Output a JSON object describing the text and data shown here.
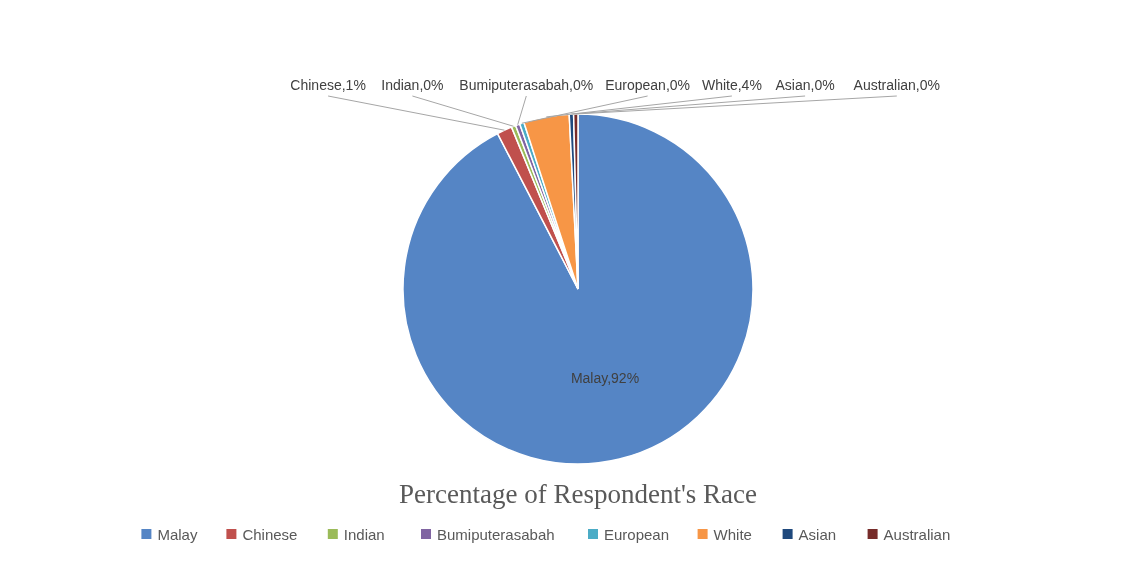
{
  "chart_data": {
    "type": "pie",
    "title": "Percentage of Respondent's Race",
    "categories": [
      "Malay",
      "Chinese",
      "Indian",
      "Bumiputerasabah",
      "European",
      "White",
      "Asian",
      "Australian"
    ],
    "values": [
      92.4,
      1.4,
      0.4,
      0.4,
      0.4,
      4.2,
      0.4,
      0.4
    ],
    "value_labels": [
      ",92%",
      ",1%",
      ",0%",
      ",0%",
      ",0%",
      ",4%",
      ",0%",
      ",0%"
    ],
    "colors": [
      "#5585c5",
      "#c0504d",
      "#9bbb59",
      "#8064a2",
      "#4bacc6",
      "#f79646",
      "#1f497d",
      "#772c2a"
    ],
    "legend": "bottom"
  }
}
